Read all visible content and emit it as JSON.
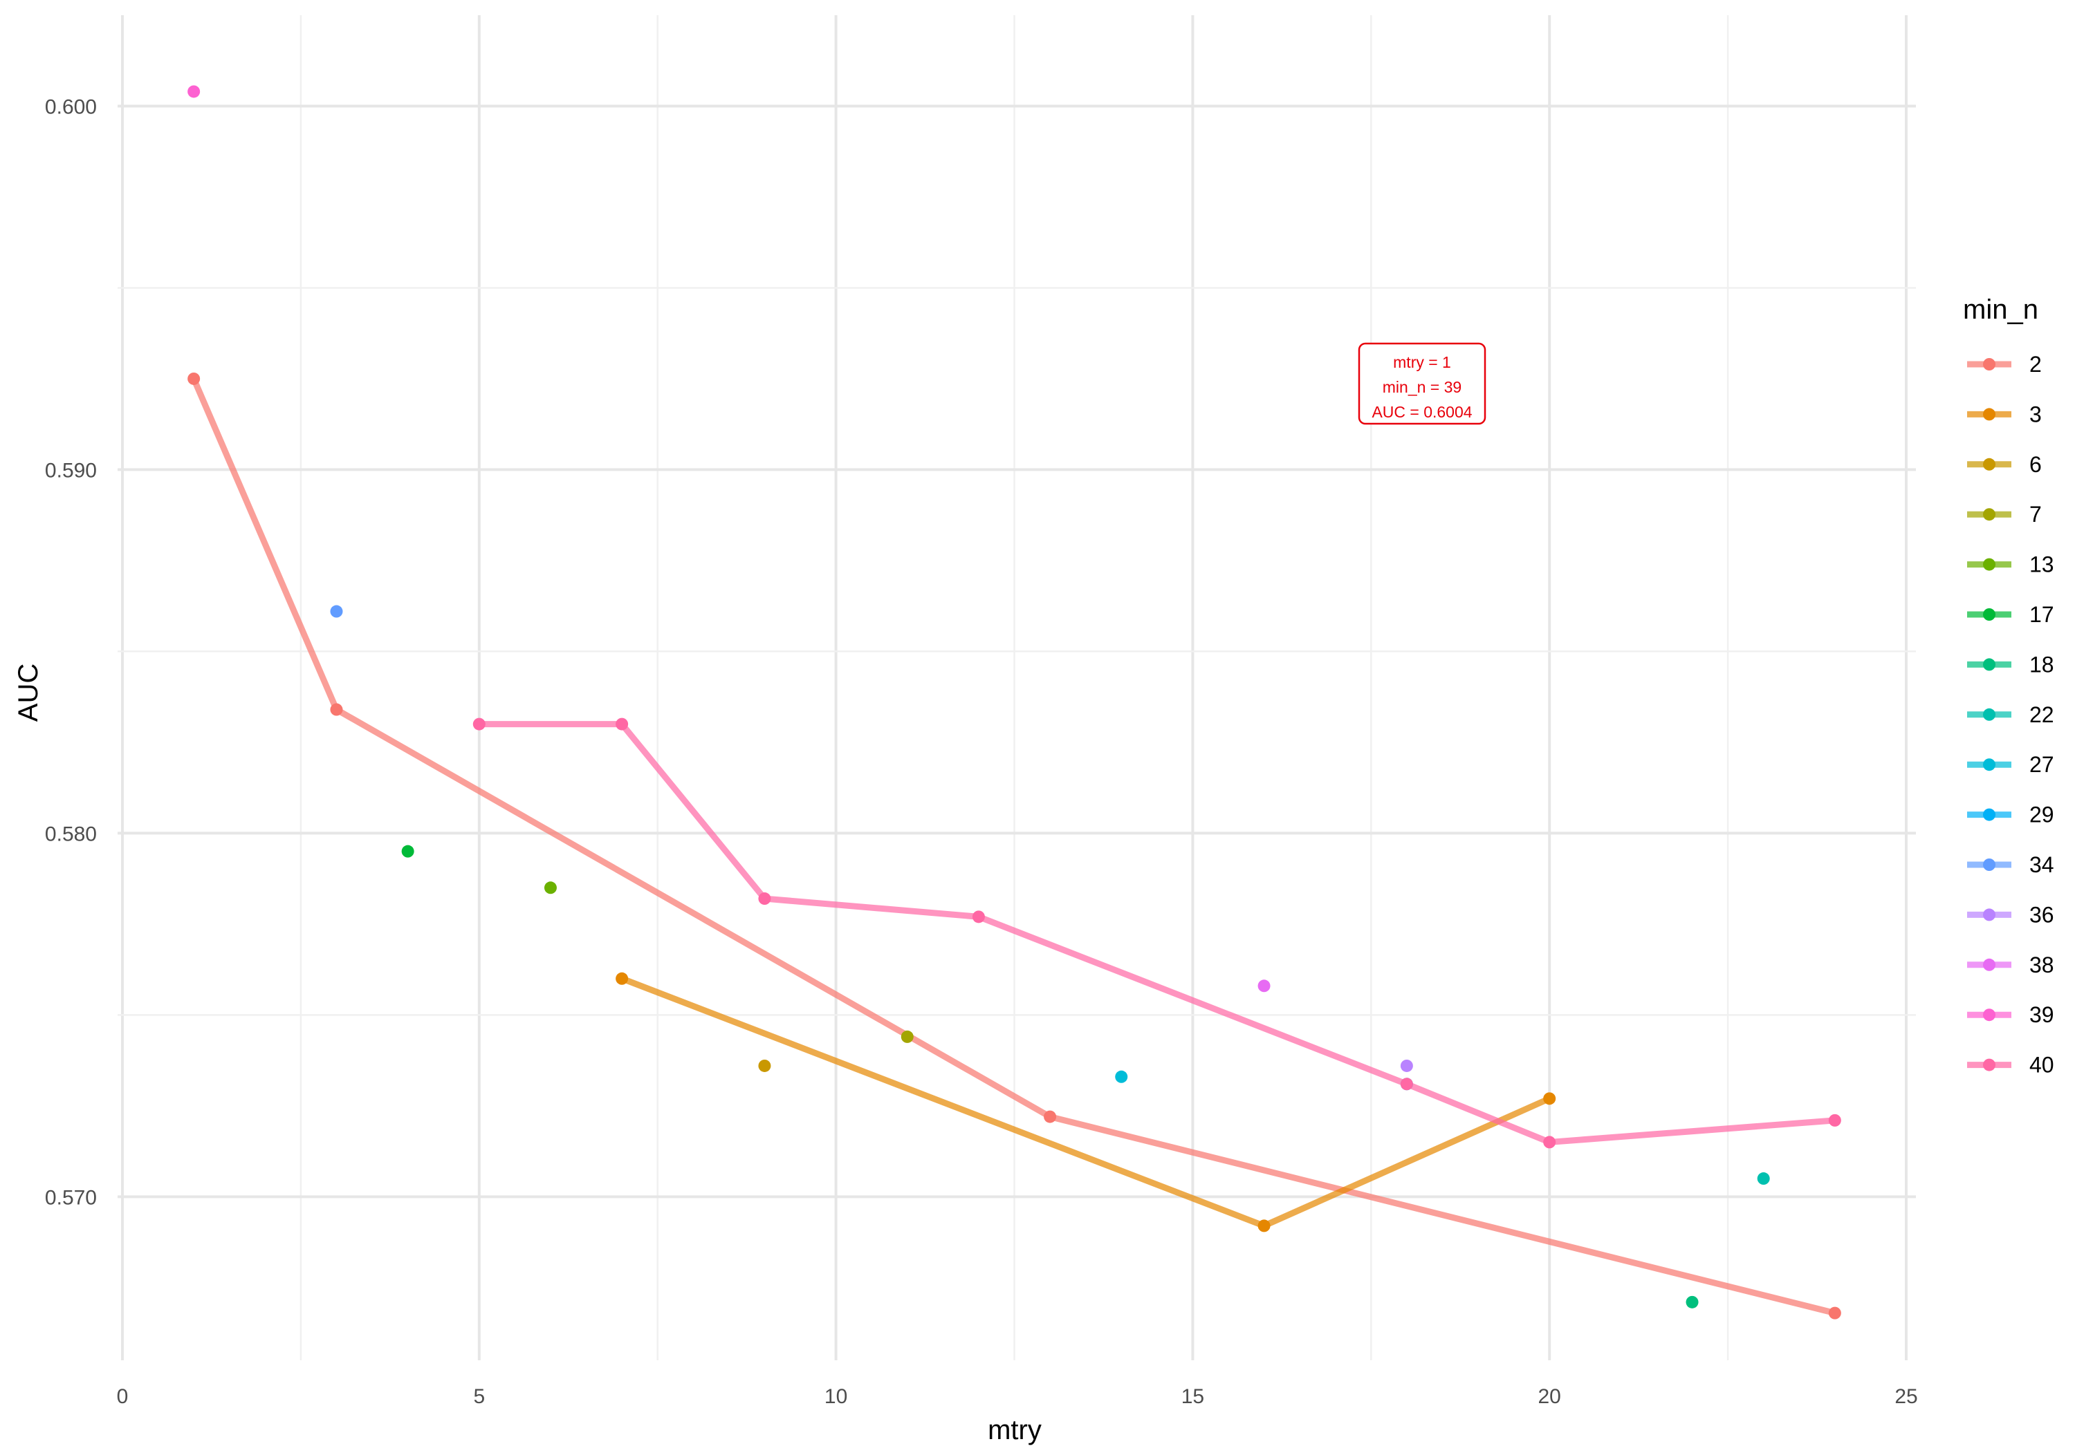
{
  "chart_data": {
    "type": "line",
    "xlabel": "mtry",
    "ylabel": "AUC",
    "xlim": [
      0,
      25
    ],
    "ylim": [
      0.5655,
      0.6025
    ],
    "x_ticks": [
      0,
      5,
      10,
      15,
      20,
      25
    ],
    "x_tick_labels": [
      "0",
      "5",
      "10",
      "15",
      "20",
      "25"
    ],
    "y_ticks": [
      0.57,
      0.58,
      0.59,
      0.6
    ],
    "y_tick_labels": [
      "0.570",
      "0.580",
      "0.590",
      "0.600"
    ],
    "grid": true,
    "legend_title": "min_n",
    "legend_position": "right",
    "series": [
      {
        "name": "2",
        "color": "#F8766D",
        "points": [
          [
            1,
            0.5925
          ],
          [
            3,
            0.5834
          ],
          [
            13,
            0.5722
          ],
          [
            24,
            0.5668
          ]
        ]
      },
      {
        "name": "3",
        "color": "#E58700",
        "points": [
          [
            7,
            0.576
          ],
          [
            16,
            0.5692
          ],
          [
            20,
            0.5727
          ]
        ]
      },
      {
        "name": "6",
        "color": "#C99800",
        "points": [
          [
            9,
            0.5736
          ]
        ]
      },
      {
        "name": "7",
        "color": "#A3A500",
        "points": [
          [
            11,
            0.5744
          ]
        ]
      },
      {
        "name": "13",
        "color": "#6BB100",
        "points": [
          [
            6,
            0.5785
          ]
        ]
      },
      {
        "name": "17",
        "color": "#00BA38",
        "points": [
          [
            4,
            0.5795
          ]
        ]
      },
      {
        "name": "18",
        "color": "#00BF7D",
        "points": [
          [
            22,
            0.5671
          ]
        ]
      },
      {
        "name": "22",
        "color": "#00C0AF",
        "points": [
          [
            23,
            0.5705
          ]
        ]
      },
      {
        "name": "27",
        "color": "#00BCD8",
        "points": [
          [
            14,
            0.5733
          ]
        ]
      },
      {
        "name": "29",
        "color": "#00B0F6",
        "points": [
          [
            18,
            0.5731
          ]
        ]
      },
      {
        "name": "34",
        "color": "#619CFF",
        "points": [
          [
            3,
            0.5861
          ]
        ]
      },
      {
        "name": "36",
        "color": "#B983FF",
        "points": [
          [
            18,
            0.5736
          ]
        ]
      },
      {
        "name": "38",
        "color": "#E76BF3",
        "points": [
          [
            16,
            0.5758
          ]
        ]
      },
      {
        "name": "39",
        "color": "#FD61D1",
        "points": [
          [
            1,
            0.6004
          ]
        ]
      },
      {
        "name": "40",
        "color": "#FF67A4",
        "points": [
          [
            5,
            0.583
          ],
          [
            7,
            0.583
          ],
          [
            9,
            0.5782
          ],
          [
            12,
            0.5777
          ],
          [
            18,
            0.5731
          ],
          [
            20,
            0.5715
          ],
          [
            24,
            0.5721
          ]
        ]
      }
    ],
    "annotation": {
      "lines": [
        "mtry = 1",
        "min_n = 39",
        "AUC = 0.6004"
      ],
      "color": "#E8000B"
    }
  }
}
